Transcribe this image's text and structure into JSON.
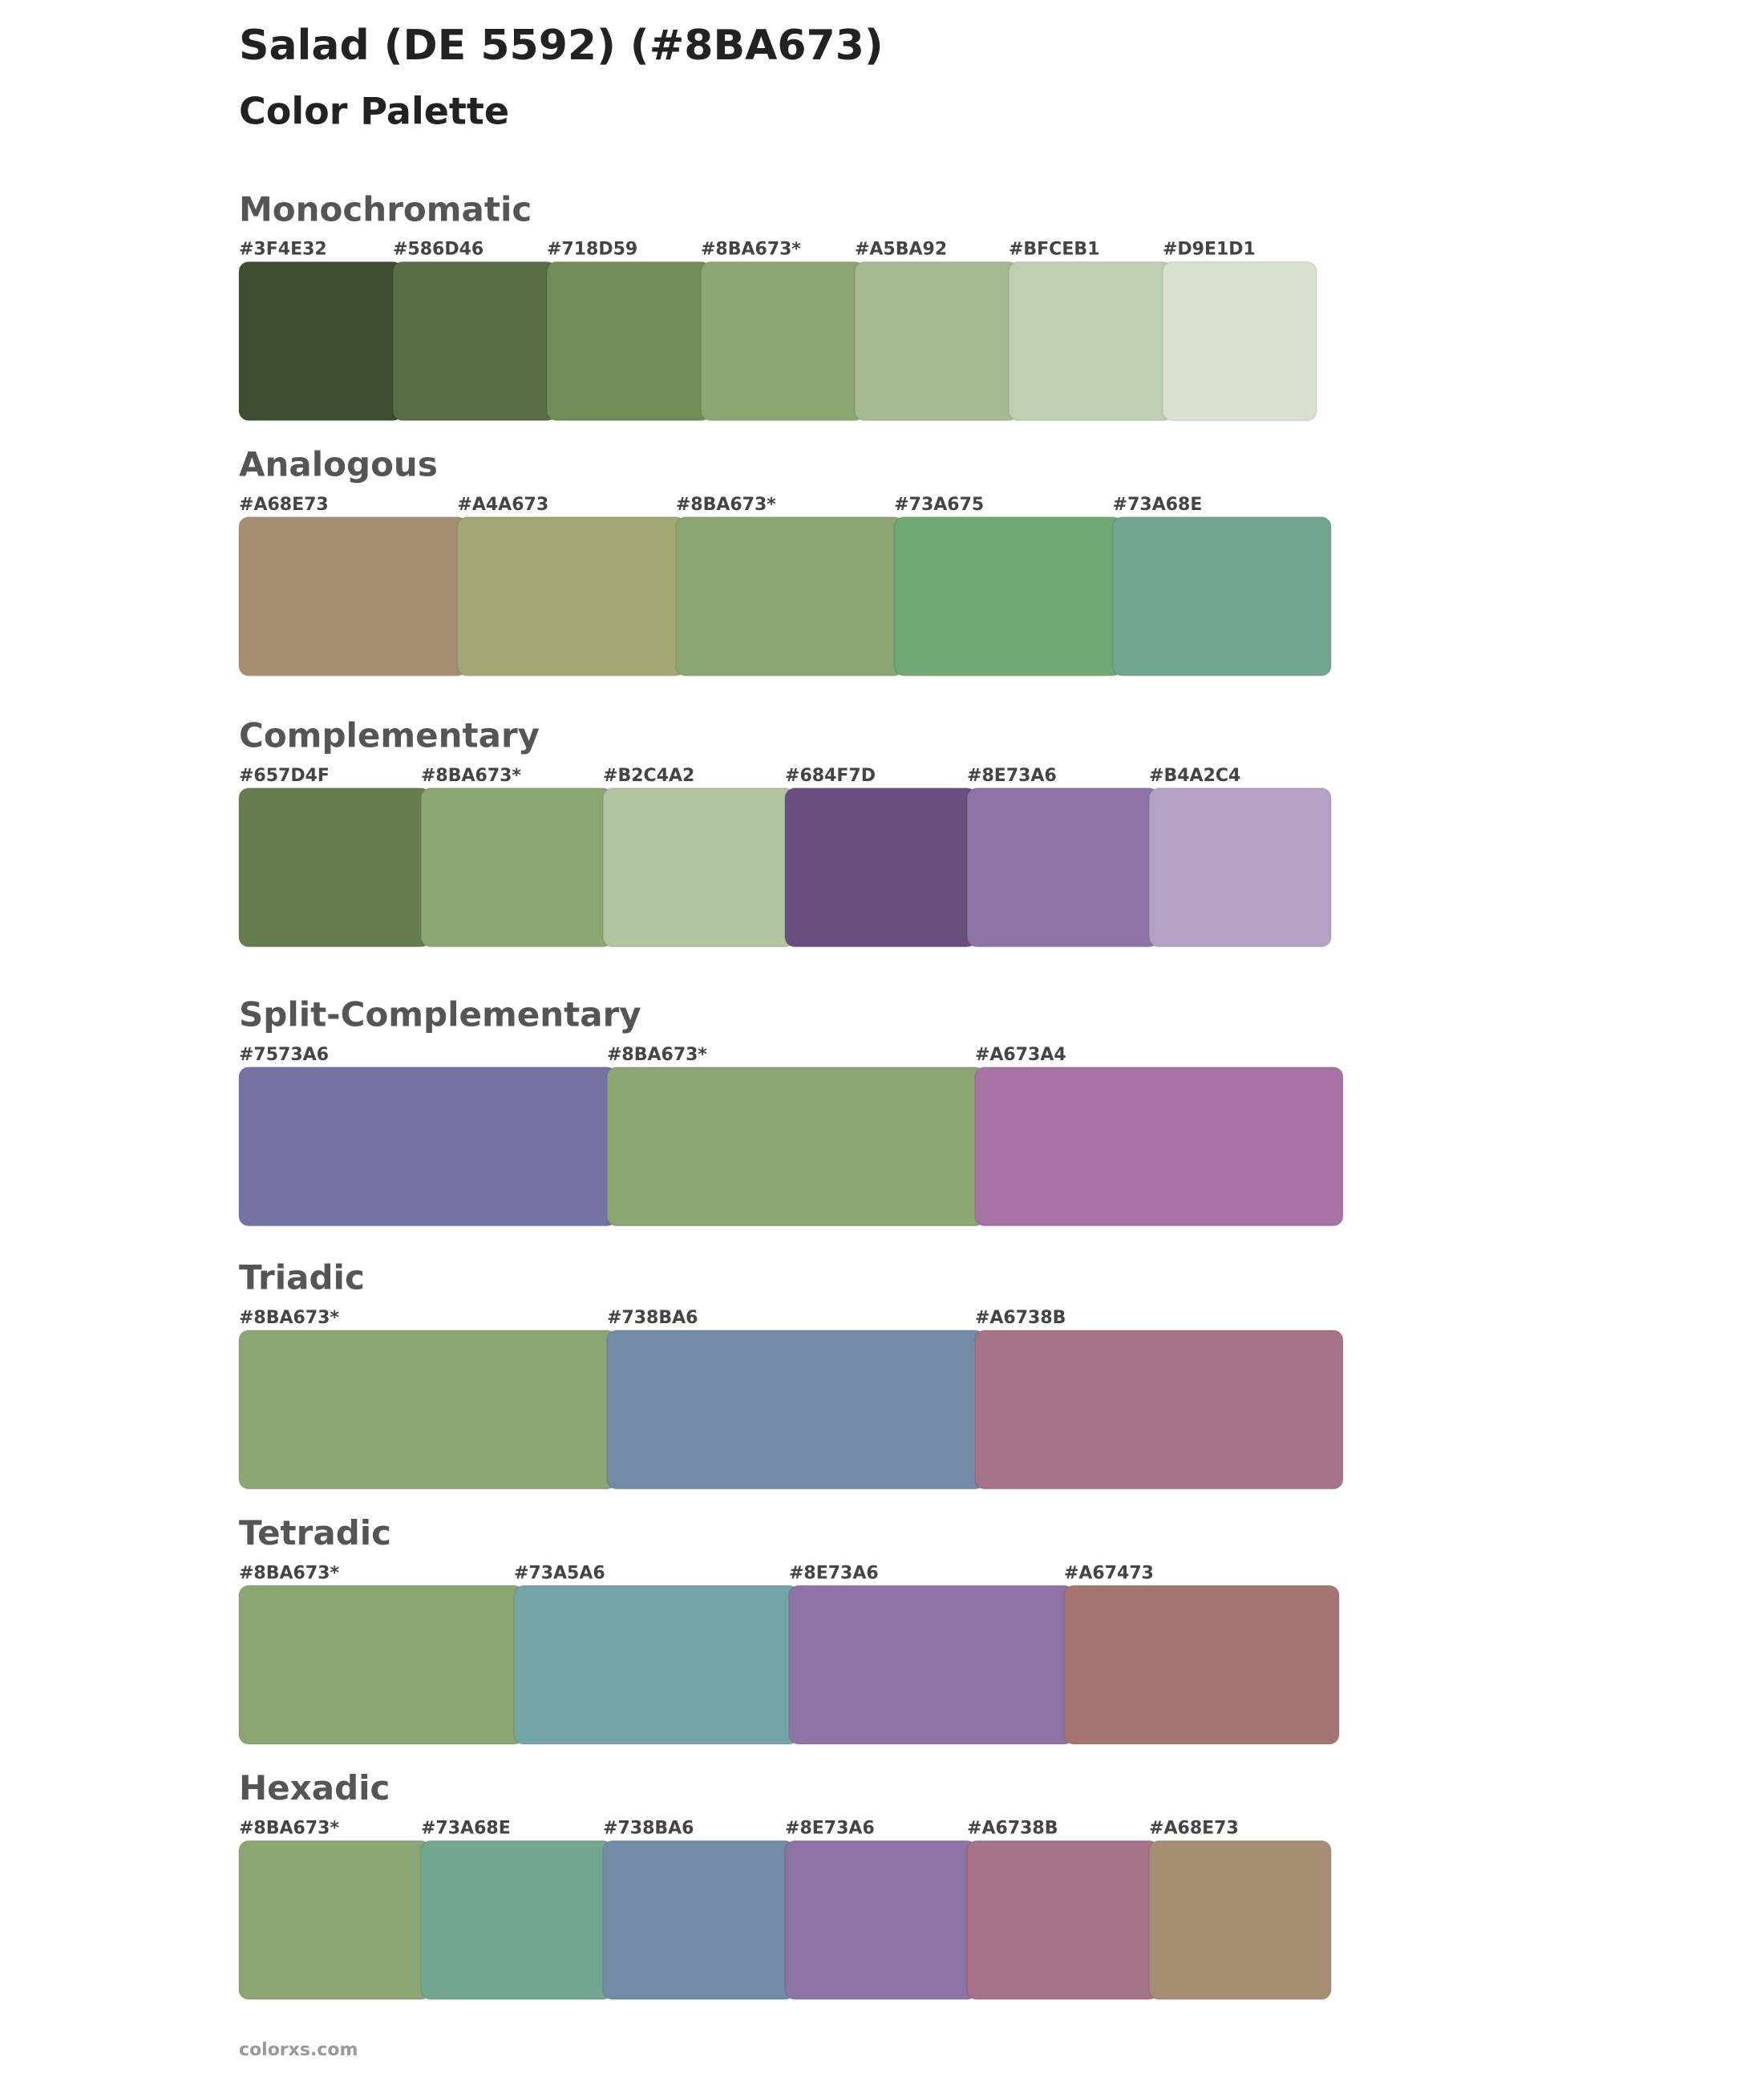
{
  "title": "Salad (DE 5592) (#8BA673)",
  "subtitle": "Color Palette",
  "sections": [
    {
      "heading": "Monochromatic",
      "swatches": [
        {
          "label": "#3F4E32",
          "color": "#3F4E32"
        },
        {
          "label": "#586D46",
          "color": "#586D46"
        },
        {
          "label": "#718D59",
          "color": "#718D59"
        },
        {
          "label": "#8BA673*",
          "color": "#8BA673"
        },
        {
          "label": "#A5BA92",
          "color": "#A5BA92"
        },
        {
          "label": "#BFCEB1",
          "color": "#BFCEB1"
        },
        {
          "label": "#D9E1D1",
          "color": "#D9E1D1"
        }
      ]
    },
    {
      "heading": "Analogous",
      "swatches": [
        {
          "label": "#A68E73",
          "color": "#A68E73"
        },
        {
          "label": "#A4A673",
          "color": "#A4A673"
        },
        {
          "label": "#8BA673*",
          "color": "#8BA673"
        },
        {
          "label": "#73A675",
          "color": "#73A675"
        },
        {
          "label": "#73A68E",
          "color": "#73A68E"
        }
      ]
    },
    {
      "heading": "Complementary",
      "swatches": [
        {
          "label": "#657D4F",
          "color": "#657D4F"
        },
        {
          "label": "#8BA673*",
          "color": "#8BA673"
        },
        {
          "label": "#B2C4A2",
          "color": "#B2C4A2"
        },
        {
          "label": "#684F7D",
          "color": "#684F7D"
        },
        {
          "label": "#8E73A6",
          "color": "#8E73A6"
        },
        {
          "label": "#B4A2C4",
          "color": "#B4A2C4"
        }
      ]
    },
    {
      "heading": "Split-Complementary",
      "swatches": [
        {
          "label": "#7573A6",
          "color": "#7573A6"
        },
        {
          "label": "#8BA673*",
          "color": "#8BA673"
        },
        {
          "label": "#A673A4",
          "color": "#A673A4"
        }
      ]
    },
    {
      "heading": "Triadic",
      "swatches": [
        {
          "label": "#8BA673*",
          "color": "#8BA673"
        },
        {
          "label": "#738BA6",
          "color": "#738BA6"
        },
        {
          "label": "#A6738B",
          "color": "#A6738B"
        }
      ]
    },
    {
      "heading": "Tetradic",
      "swatches": [
        {
          "label": "#8BA673*",
          "color": "#8BA673"
        },
        {
          "label": "#73A5A6",
          "color": "#73A5A6"
        },
        {
          "label": "#8E73A6",
          "color": "#8E73A6"
        },
        {
          "label": "#A67473",
          "color": "#A67473"
        }
      ]
    },
    {
      "heading": "Hexadic",
      "swatches": [
        {
          "label": "#8BA673*",
          "color": "#8BA673"
        },
        {
          "label": "#73A68E",
          "color": "#73A68E"
        },
        {
          "label": "#738BA6",
          "color": "#738BA6"
        },
        {
          "label": "#8E73A6",
          "color": "#8E73A6"
        },
        {
          "label": "#A6738B",
          "color": "#A6738B"
        },
        {
          "label": "#A68E73",
          "color": "#A68E73"
        }
      ]
    }
  ],
  "footer": "colorxs.com"
}
